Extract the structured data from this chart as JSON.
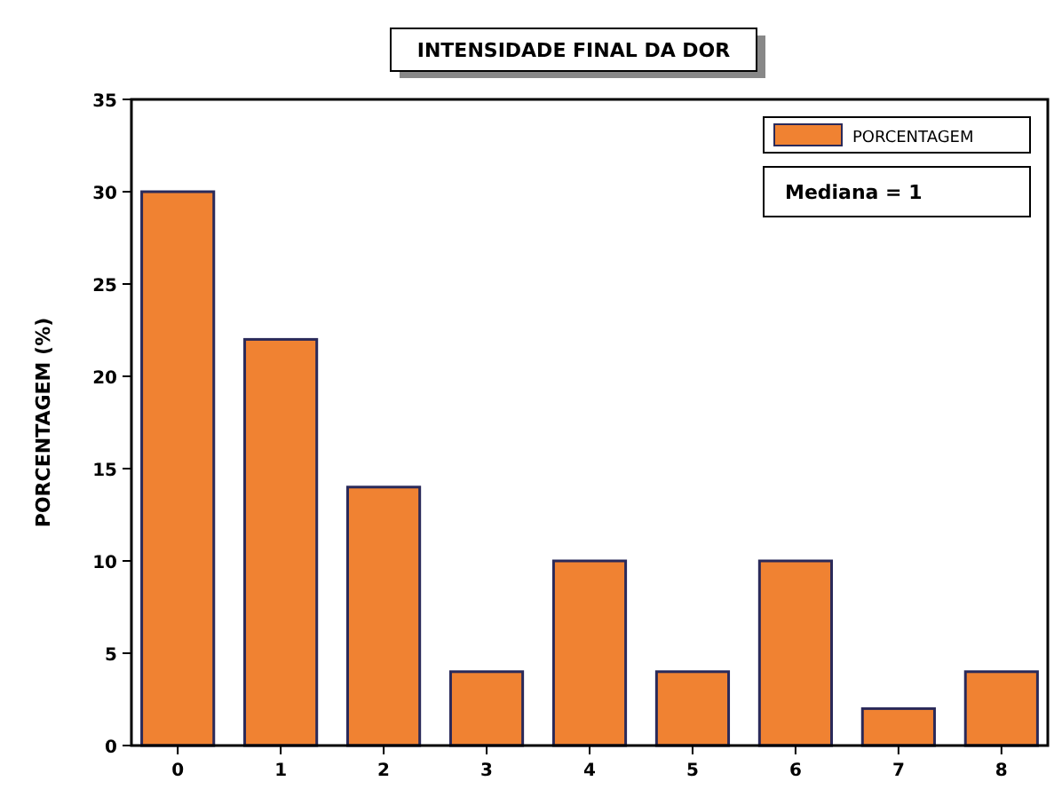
{
  "chart_data": {
    "type": "bar",
    "title": "INTENSIDADE FINAL DA DOR",
    "ylabel": "PORCENTAGEM (%)",
    "categories": [
      "0",
      "1",
      "2",
      "3",
      "4",
      "5",
      "6",
      "7",
      "8"
    ],
    "series": [
      {
        "name": "PORCENTAGEM",
        "color": "#f08232",
        "values": [
          30,
          22,
          14,
          4,
          10,
          4,
          10,
          2,
          4
        ]
      }
    ],
    "ylim": [
      0,
      35
    ],
    "yticks": [
      0,
      5,
      10,
      15,
      20,
      25,
      30,
      35
    ],
    "grid": false,
    "legend": "top right",
    "annotations": [
      "Mediana = 1"
    ]
  }
}
